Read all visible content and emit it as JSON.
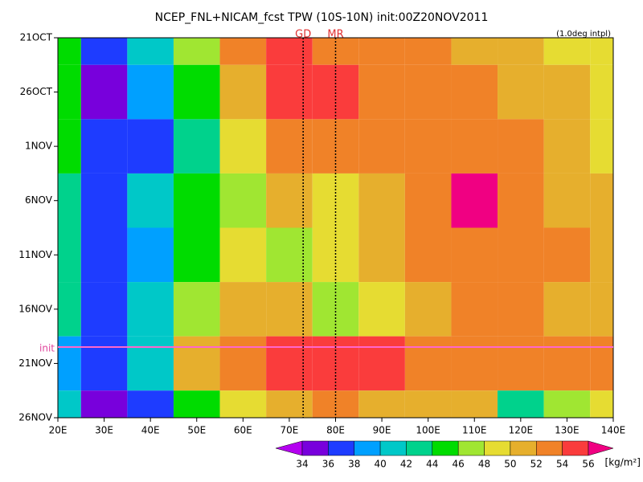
{
  "chart_data": {
    "type": "heatmap",
    "title": "NCEP_FNL+NICAM_fcst TPW (10S-10N) init:00Z20NOV2011",
    "subtitle": "(1.0deg intpl)",
    "x": [
      20,
      30,
      40,
      50,
      60,
      70,
      80,
      90,
      100,
      110,
      120,
      130,
      140
    ],
    "y": [
      "21OCT",
      "26OCT",
      "1NOV",
      "6NOV",
      "11NOV",
      "16NOV",
      "21NOV",
      "26NOV"
    ],
    "values": [
      [
        44,
        36,
        41,
        46,
        53,
        54,
        53,
        52,
        52,
        51,
        50,
        49,
        48
      ],
      [
        45,
        35,
        38,
        44,
        51,
        54,
        55,
        53,
        52,
        52,
        51,
        50,
        49
      ],
      [
        44,
        36,
        37,
        42,
        48,
        52,
        53,
        53,
        52,
        52,
        52,
        50,
        48
      ],
      [
        43,
        37,
        41,
        44,
        47,
        50,
        49,
        50,
        52,
        57,
        53,
        51,
        50
      ],
      [
        42,
        37,
        39,
        44,
        48,
        47,
        48,
        50,
        52,
        53,
        53,
        52,
        51
      ],
      [
        42,
        36,
        40,
        47,
        50,
        50,
        47,
        49,
        51,
        52,
        52,
        51,
        51
      ],
      [
        38,
        36,
        40,
        50,
        53,
        55,
        54,
        54,
        53,
        53,
        52,
        52,
        52
      ],
      [
        40,
        35,
        37,
        44,
        48,
        51,
        52,
        51,
        50,
        50,
        42,
        46,
        49
      ]
    ],
    "xlim": [
      20,
      140
    ],
    "xticks": [
      {
        "value": 20,
        "label": "20E"
      },
      {
        "value": 30,
        "label": "30E"
      },
      {
        "value": 40,
        "label": "40E"
      },
      {
        "value": 50,
        "label": "50E"
      },
      {
        "value": 60,
        "label": "60E"
      },
      {
        "value": 70,
        "label": "70E"
      },
      {
        "value": 80,
        "label": "80E"
      },
      {
        "value": 90,
        "label": "90E"
      },
      {
        "value": 100,
        "label": "100E"
      },
      {
        "value": 110,
        "label": "110E"
      },
      {
        "value": 120,
        "label": "120E"
      },
      {
        "value": 130,
        "label": "130E"
      },
      {
        "value": 140,
        "label": "140E"
      }
    ],
    "markers": [
      {
        "label": "GD",
        "x": 73
      },
      {
        "label": "MR",
        "x": 80
      }
    ],
    "init_label": "init",
    "colorbar": {
      "levels": [
        34,
        36,
        38,
        40,
        42,
        44,
        46,
        48,
        50,
        52,
        54,
        56
      ],
      "colors": [
        "#b400f0",
        "#7800dc",
        "#1e3cff",
        "#00a0ff",
        "#00c8c8",
        "#00d28c",
        "#00dc00",
        "#a0e632",
        "#e6dc32",
        "#e6af2d",
        "#f08228",
        "#fa3c3c",
        "#f00082"
      ],
      "unit": "[kg/m²]"
    }
  }
}
